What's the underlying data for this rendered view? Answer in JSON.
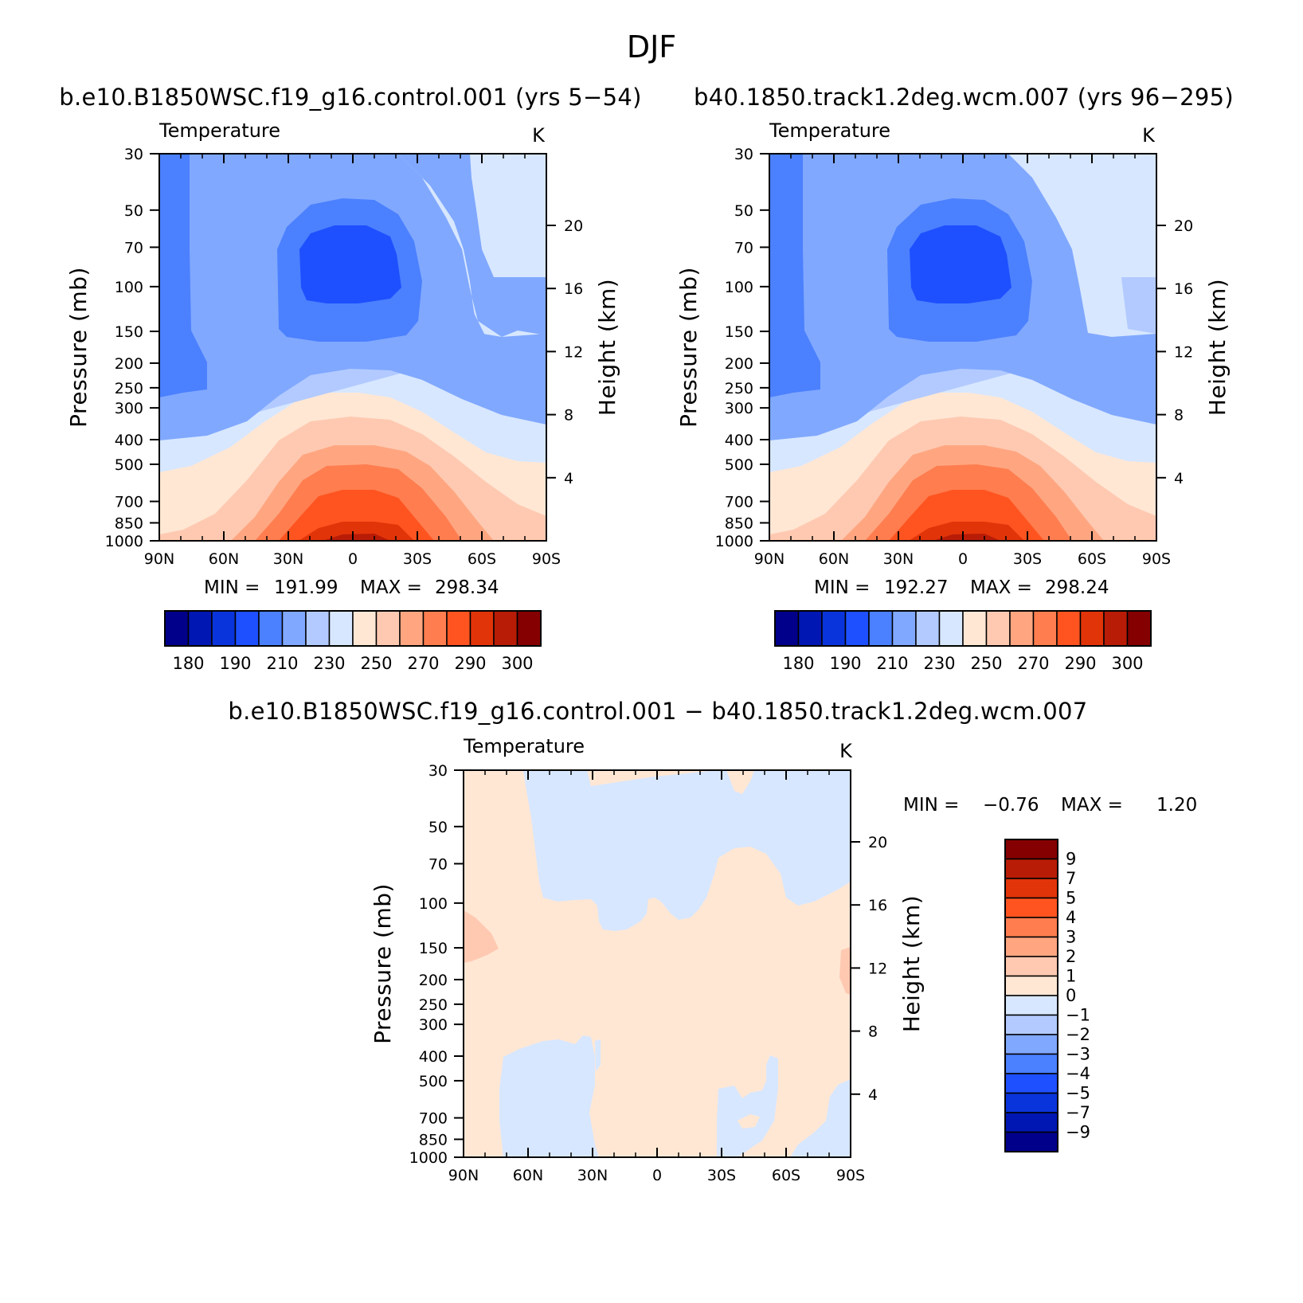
{
  "figure_title": "DJF",
  "palette": [
    "#00008a",
    "#0017b3",
    "#0a34db",
    "#1e50ff",
    "#4b80ff",
    "#80a8ff",
    "#b2caff",
    "#d7e7ff",
    "#ffe7d4",
    "#ffc9b1",
    "#ffa681",
    "#ff7d4f",
    "#ff5420",
    "#e23409",
    "#b81c07",
    "#850000"
  ],
  "chart_data": [
    {
      "type": "contour",
      "title": "b.e10.B1850WSC.f19_g16.control.001 (yrs 5-54)",
      "variable": "Temperature",
      "units": "K",
      "xlabel": "",
      "ylabel": "Pressure (mb)",
      "y2label": "Height (km)",
      "x_ticks": [
        "90N",
        "60N",
        "30N",
        "0",
        "30S",
        "60S",
        "90S"
      ],
      "y_ticks": [
        "30",
        "50",
        "70",
        "100",
        "150",
        "200",
        "250",
        "300",
        "400",
        "500",
        "700",
        "850",
        "1000"
      ],
      "y2_ticks": [
        "20",
        "16",
        "12",
        "8",
        "4"
      ],
      "ylim": [
        30,
        1000
      ],
      "min_label": "MIN =",
      "min": "191.99",
      "max_label": "MAX =",
      "max": "298.34",
      "colorbar_labels": [
        "180",
        "190",
        "210",
        "230",
        "250",
        "270",
        "290",
        "300"
      ]
    },
    {
      "type": "contour",
      "title": "b40.1850.track1.2deg.wcm.007 (yrs 96-295)",
      "variable": "Temperature",
      "units": "K",
      "xlabel": "",
      "ylabel": "Pressure (mb)",
      "y2label": "Height (km)",
      "x_ticks": [
        "90N",
        "60N",
        "30N",
        "0",
        "30S",
        "60S",
        "90S"
      ],
      "y_ticks": [
        "30",
        "50",
        "70",
        "100",
        "150",
        "200",
        "250",
        "300",
        "400",
        "500",
        "700",
        "850",
        "1000"
      ],
      "y2_ticks": [
        "20",
        "16",
        "12",
        "8",
        "4"
      ],
      "ylim": [
        30,
        1000
      ],
      "min_label": "MIN =",
      "min": "192.27",
      "max_label": "MAX =",
      "max": "298.24",
      "colorbar_labels": [
        "180",
        "190",
        "210",
        "230",
        "250",
        "270",
        "290",
        "300"
      ]
    },
    {
      "type": "contour",
      "title": "b.e10.B1850WSC.f19_g16.control.001 - b40.1850.track1.2deg.wcm.007",
      "variable": "Temperature",
      "units": "K",
      "xlabel": "",
      "ylabel": "Pressure (mb)",
      "y2label": "Height (km)",
      "x_ticks": [
        "90N",
        "60N",
        "30N",
        "0",
        "30S",
        "60S",
        "90S"
      ],
      "y_ticks": [
        "30",
        "50",
        "70",
        "100",
        "150",
        "200",
        "250",
        "300",
        "400",
        "500",
        "700",
        "850",
        "1000"
      ],
      "y2_ticks": [
        "20",
        "16",
        "12",
        "8",
        "4"
      ],
      "ylim": [
        30,
        1000
      ],
      "min_label": "MIN =",
      "min": "-0.76",
      "max_label": "MAX =",
      "max": "1.20",
      "colorbar_labels": [
        "9",
        "7",
        "5",
        "4",
        "3",
        "2",
        "1",
        "0",
        "-1",
        "-2",
        "-3",
        "-4",
        "-5",
        "-7",
        "-9"
      ]
    }
  ]
}
